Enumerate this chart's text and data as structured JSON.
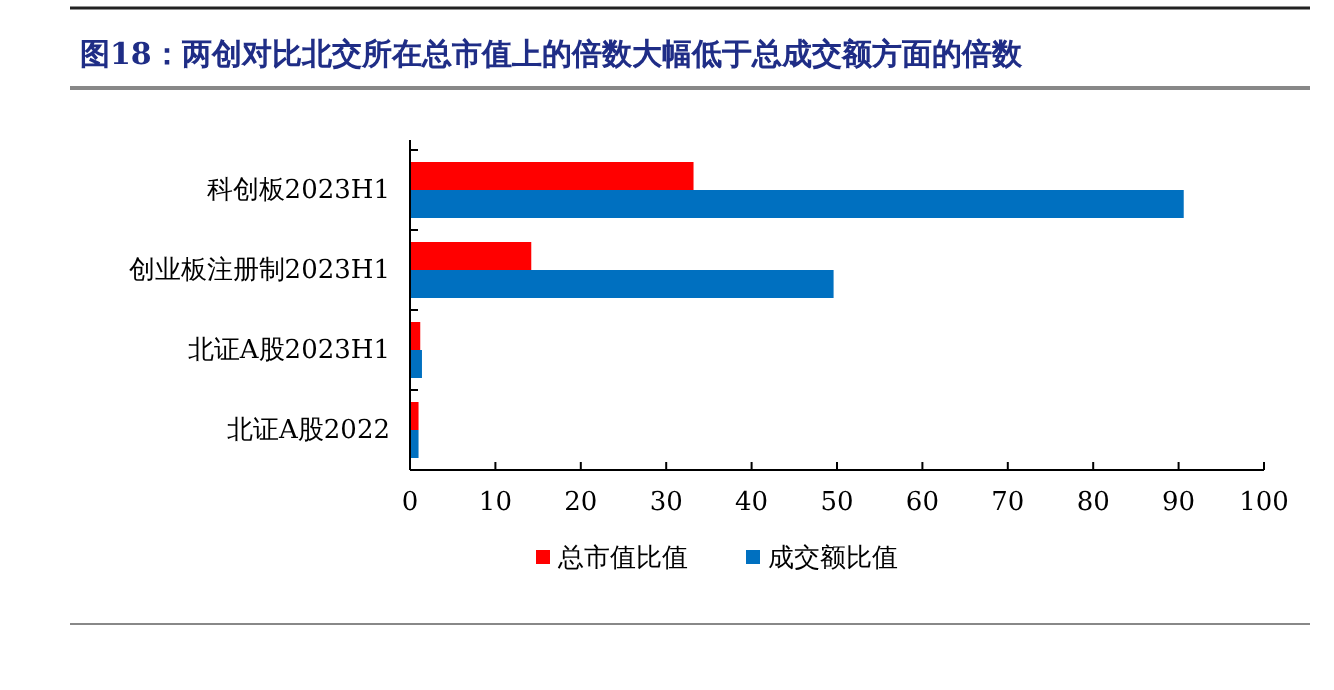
{
  "chart_data": {
    "type": "bar",
    "orientation": "horizontal",
    "title": "图18：两创对比北交所在总市值上的倍数大幅低于总成交额方面的倍数",
    "categories": [
      "科创板2023H1",
      "创业板注册制2023H1",
      "北证A股2023H1",
      "北证A股2022"
    ],
    "series": [
      {
        "name": "总市值比值",
        "color": "#ff0000",
        "values": [
          33.2,
          14.2,
          1.2,
          1.0
        ]
      },
      {
        "name": "成交额比值",
        "color": "#0070c0",
        "values": [
          90.6,
          49.6,
          1.4,
          1.0
        ]
      }
    ],
    "xlim": [
      0,
      100
    ],
    "xticks": [
      0,
      10,
      20,
      30,
      40,
      50,
      60,
      70,
      80,
      90,
      100
    ],
    "grid": false,
    "legend": "bottom"
  }
}
